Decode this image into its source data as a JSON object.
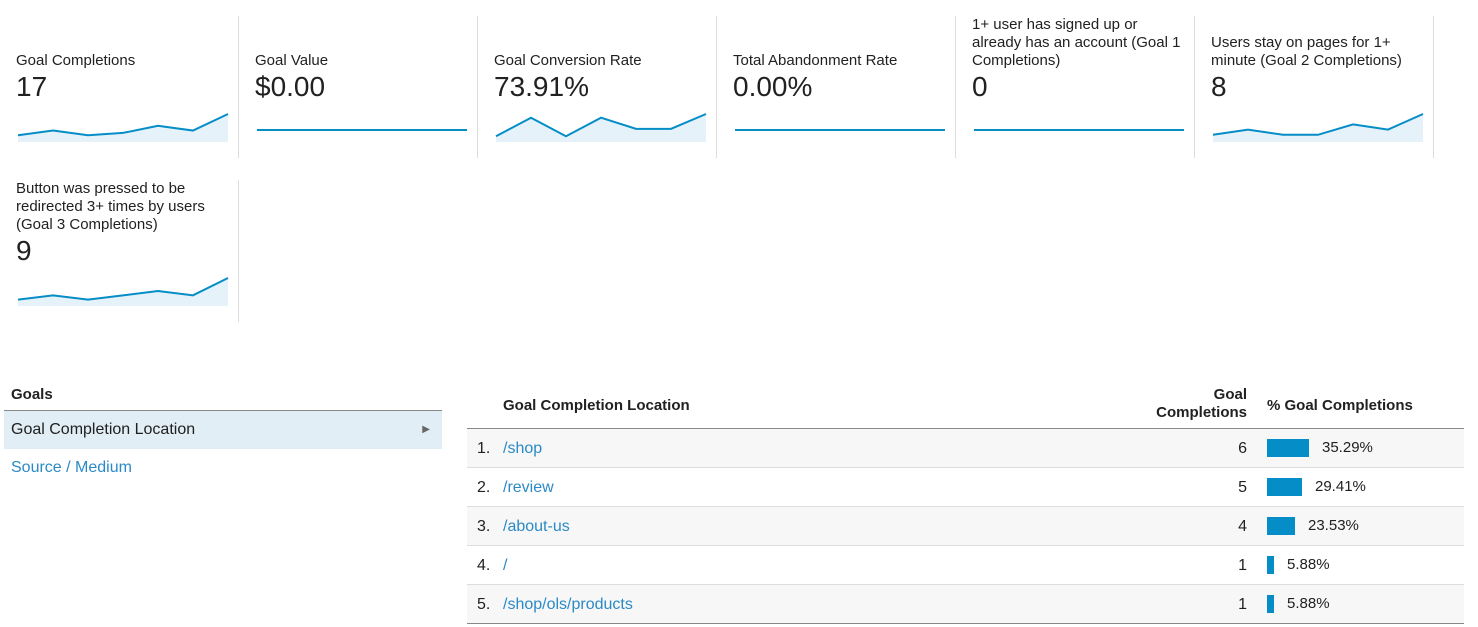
{
  "metrics": [
    {
      "label": "Goal Completions",
      "value": "17",
      "spark": [
        2,
        4,
        2,
        3,
        6,
        4,
        11
      ]
    },
    {
      "label": "Goal Value",
      "value": "$0.00",
      "spark": [
        0,
        0,
        0,
        0,
        0,
        0,
        0
      ]
    },
    {
      "label": "Goal Conversion Rate",
      "value": "73.91%",
      "spark": [
        1,
        6,
        1,
        6,
        3,
        3,
        7
      ]
    },
    {
      "label": "Total Abandonment Rate",
      "value": "0.00%",
      "spark": [
        0,
        0,
        0,
        0,
        0,
        0,
        0
      ]
    },
    {
      "label": "1+ user has signed up or already has an account (Goal 1 Completions)",
      "value": "0",
      "spark": [
        0,
        0,
        0,
        0,
        0,
        0,
        0
      ]
    },
    {
      "label": "Users stay on pages for 1+ minute (Goal 2 Completions)",
      "value": "8",
      "spark": [
        1,
        2,
        1,
        1,
        3,
        2,
        5
      ]
    },
    {
      "label": "Button was pressed to be redirected 3+ times by users (Goal 3 Completions)",
      "value": "9",
      "spark": [
        1,
        2,
        1,
        2,
        3,
        2,
        6
      ]
    }
  ],
  "goals_panel": {
    "heading": "Goals",
    "items": [
      {
        "label": "Goal Completion Location",
        "selected": true
      },
      {
        "label": "Source / Medium",
        "selected": false
      }
    ]
  },
  "table": {
    "col_location": "Goal Completion Location",
    "col_completions_line1": "Goal",
    "col_completions_line2": "Completions",
    "col_pct": "% Goal Completions",
    "rows": [
      {
        "rank": "1.",
        "location": "/shop",
        "completions": "6",
        "pct": "35.29%",
        "pct_value": 35.29
      },
      {
        "rank": "2.",
        "location": "/review",
        "completions": "5",
        "pct": "29.41%",
        "pct_value": 29.41
      },
      {
        "rank": "3.",
        "location": "/about-us",
        "completions": "4",
        "pct": "23.53%",
        "pct_value": 23.53
      },
      {
        "rank": "4.",
        "location": "/",
        "completions": "1",
        "pct": "5.88%",
        "pct_value": 5.88
      },
      {
        "rank": "5.",
        "location": "/shop/ols/products",
        "completions": "1",
        "pct": "5.88%",
        "pct_value": 5.88
      }
    ]
  },
  "colors": {
    "accent": "#058dc7",
    "link": "#2b8ac6",
    "spark_fill": "#e6f2fa"
  }
}
